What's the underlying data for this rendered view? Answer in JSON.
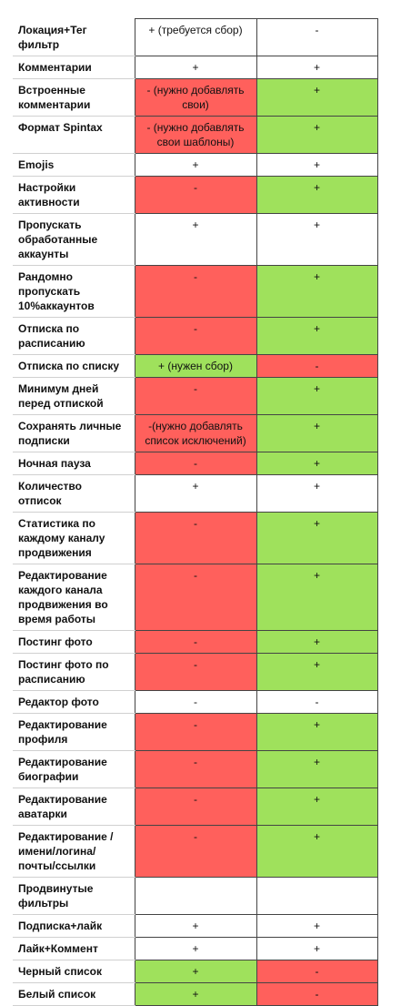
{
  "table": {
    "rows": [
      {
        "label": "Локация+Тег фильтр",
        "cells": [
          {
            "text": "+ (требуется сбор)",
            "fill": "white"
          },
          {
            "text": "-",
            "fill": "white"
          }
        ]
      },
      {
        "label": "Комментарии",
        "cells": [
          {
            "text": "+",
            "fill": "white"
          },
          {
            "text": "+",
            "fill": "white"
          }
        ]
      },
      {
        "label": "Встроенные комментарии",
        "cells": [
          {
            "text": "- (нужно добавлять свои)",
            "fill": "red"
          },
          {
            "text": "+",
            "fill": "green"
          }
        ]
      },
      {
        "label": "Формат Spintax",
        "cells": [
          {
            "text": "- (нужно добавлять свои шаблоны)",
            "fill": "red"
          },
          {
            "text": "+",
            "fill": "green"
          }
        ]
      },
      {
        "label": "Emojis",
        "cells": [
          {
            "text": "+",
            "fill": "white"
          },
          {
            "text": "+",
            "fill": "white"
          }
        ]
      },
      {
        "label": "Настройки активности",
        "cells": [
          {
            "text": "-",
            "fill": "red"
          },
          {
            "text": "+",
            "fill": "green"
          }
        ]
      },
      {
        "label": "Пропускать обработанные аккаунты",
        "cells": [
          {
            "text": "+",
            "fill": "white"
          },
          {
            "text": "+",
            "fill": "white"
          }
        ]
      },
      {
        "label": "Рандомно пропускать 10%аккаунтов",
        "cells": [
          {
            "text": "-",
            "fill": "red"
          },
          {
            "text": "+",
            "fill": "green"
          }
        ]
      },
      {
        "label": "Отписка по расписанию",
        "cells": [
          {
            "text": "-",
            "fill": "red"
          },
          {
            "text": "+",
            "fill": "green"
          }
        ]
      },
      {
        "label": "Отписка по списку",
        "cells": [
          {
            "text": "+ (нужен сбор)",
            "fill": "green"
          },
          {
            "text": "-",
            "fill": "red"
          }
        ]
      },
      {
        "label": "Минимум дней перед отпиской",
        "cells": [
          {
            "text": "-",
            "fill": "red"
          },
          {
            "text": "+",
            "fill": "green"
          }
        ]
      },
      {
        "label": "Сохранять личные подписки",
        "cells": [
          {
            "text": "-(нужно добавлять список исключений)",
            "fill": "red"
          },
          {
            "text": "+",
            "fill": "green"
          }
        ]
      },
      {
        "label": "Ночная пауза",
        "cells": [
          {
            "text": "-",
            "fill": "red"
          },
          {
            "text": "+",
            "fill": "green"
          }
        ]
      },
      {
        "label": "Количество отписок",
        "cells": [
          {
            "text": "+",
            "fill": "white"
          },
          {
            "text": "+",
            "fill": "white"
          }
        ]
      },
      {
        "label": "Статистика по каждому каналу продвижения",
        "cells": [
          {
            "text": "-",
            "fill": "red"
          },
          {
            "text": "+",
            "fill": "green"
          }
        ]
      },
      {
        "label": "Редактирование каждого канала продвижения во время работы",
        "cells": [
          {
            "text": "-",
            "fill": "red"
          },
          {
            "text": "+",
            "fill": "green"
          }
        ]
      },
      {
        "label": "Постинг фото",
        "cells": [
          {
            "text": "-",
            "fill": "red"
          },
          {
            "text": "+",
            "fill": "green"
          }
        ]
      },
      {
        "label": "Постинг фото по расписанию",
        "cells": [
          {
            "text": "-",
            "fill": "red"
          },
          {
            "text": "+",
            "fill": "green"
          }
        ]
      },
      {
        "label": "Редактор фото",
        "cells": [
          {
            "text": "-",
            "fill": "white"
          },
          {
            "text": "-",
            "fill": "white"
          }
        ]
      },
      {
        "label": "Редактирование профиля",
        "cells": [
          {
            "text": "-",
            "fill": "red"
          },
          {
            "text": "+",
            "fill": "green"
          }
        ]
      },
      {
        "label": "Редактирование биографии",
        "cells": [
          {
            "text": "-",
            "fill": "red"
          },
          {
            "text": "+",
            "fill": "green"
          }
        ]
      },
      {
        "label": "Редактирование аватарки",
        "cells": [
          {
            "text": "-",
            "fill": "red"
          },
          {
            "text": "+",
            "fill": "green"
          }
        ]
      },
      {
        "label": "Редактирование /имени/логина/почты/ссылки",
        "cells": [
          {
            "text": "-",
            "fill": "red"
          },
          {
            "text": "+",
            "fill": "green"
          }
        ]
      },
      {
        "label": "Продвинутые фильтры",
        "cells": [
          {
            "fill": "white"
          },
          {
            "fill": "white"
          }
        ]
      },
      {
        "label": "Подписка+лайк",
        "cells": [
          {
            "text": "+",
            "fill": "white"
          },
          {
            "text": "+",
            "fill": "white"
          }
        ]
      },
      {
        "label": "Лайк+Коммент",
        "cells": [
          {
            "text": "+",
            "fill": "white"
          },
          {
            "text": "+",
            "fill": "white"
          }
        ]
      },
      {
        "label": "Черный список",
        "cells": [
          {
            "text": "+",
            "fill": "green"
          },
          {
            "text": "-",
            "fill": "red"
          }
        ]
      },
      {
        "label": "Белый список",
        "cells": [
          {
            "text": "+",
            "fill": "green"
          },
          {
            "text": "-",
            "fill": "red"
          }
        ]
      }
    ]
  }
}
